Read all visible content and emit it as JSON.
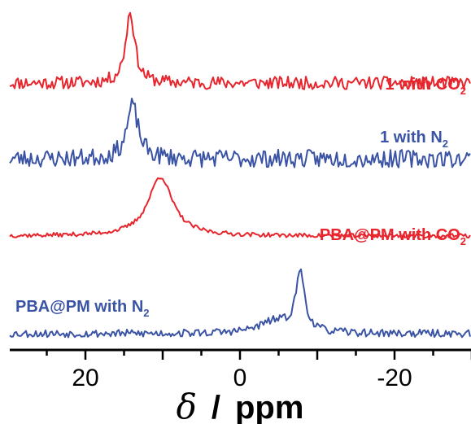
{
  "chart_data": {
    "type": "line",
    "title": "",
    "xlabel": {
      "symbol": "δ",
      "separator": "/",
      "unit": "ppm"
    },
    "ylabel": "",
    "xlim": [
      30,
      -30
    ],
    "x_reversed": true,
    "xticks": [
      20,
      0,
      -20
    ],
    "xtick_labels": [
      "20",
      "0",
      "-20"
    ],
    "grid": false,
    "colors": {
      "red": "#e8242c",
      "blue": "#3a53a4"
    },
    "series": [
      {
        "id": "s1",
        "name": "1 with CO2",
        "label_main": "1 with CO",
        "label_sub": "2",
        "color": "#e8242c",
        "peaks": [
          {
            "x": 14.2,
            "height": 1.0,
            "width": 0.7
          }
        ],
        "noise": 0.09,
        "seed": 11
      },
      {
        "id": "s2",
        "name": "1 with N2",
        "label_main": "1 with N",
        "label_sub": "2",
        "color": "#3a53a4",
        "peaks": [
          {
            "x": 13.9,
            "height": 1.0,
            "width": 0.9
          }
        ],
        "noise": 0.17,
        "seed": 23
      },
      {
        "id": "s3",
        "name": "PBA@PM with CO2",
        "label_main": "PBA@PM with CO",
        "label_sub": "2",
        "color": "#e8242c",
        "peaks": [
          {
            "x": 10.3,
            "height": 1.0,
            "width": 1.9
          }
        ],
        "noise": 0.035,
        "seed": 37
      },
      {
        "id": "s4",
        "name": "PBA@PM with N2",
        "label_main": "PBA@PM with N",
        "label_sub": "2",
        "color": "#3a53a4",
        "peaks": [
          {
            "x": -7.8,
            "height": 1.0,
            "width": 0.7
          },
          {
            "x": -4.5,
            "height": 0.2,
            "width": 2.5
          }
        ],
        "noise": 0.065,
        "seed": 53
      }
    ]
  }
}
